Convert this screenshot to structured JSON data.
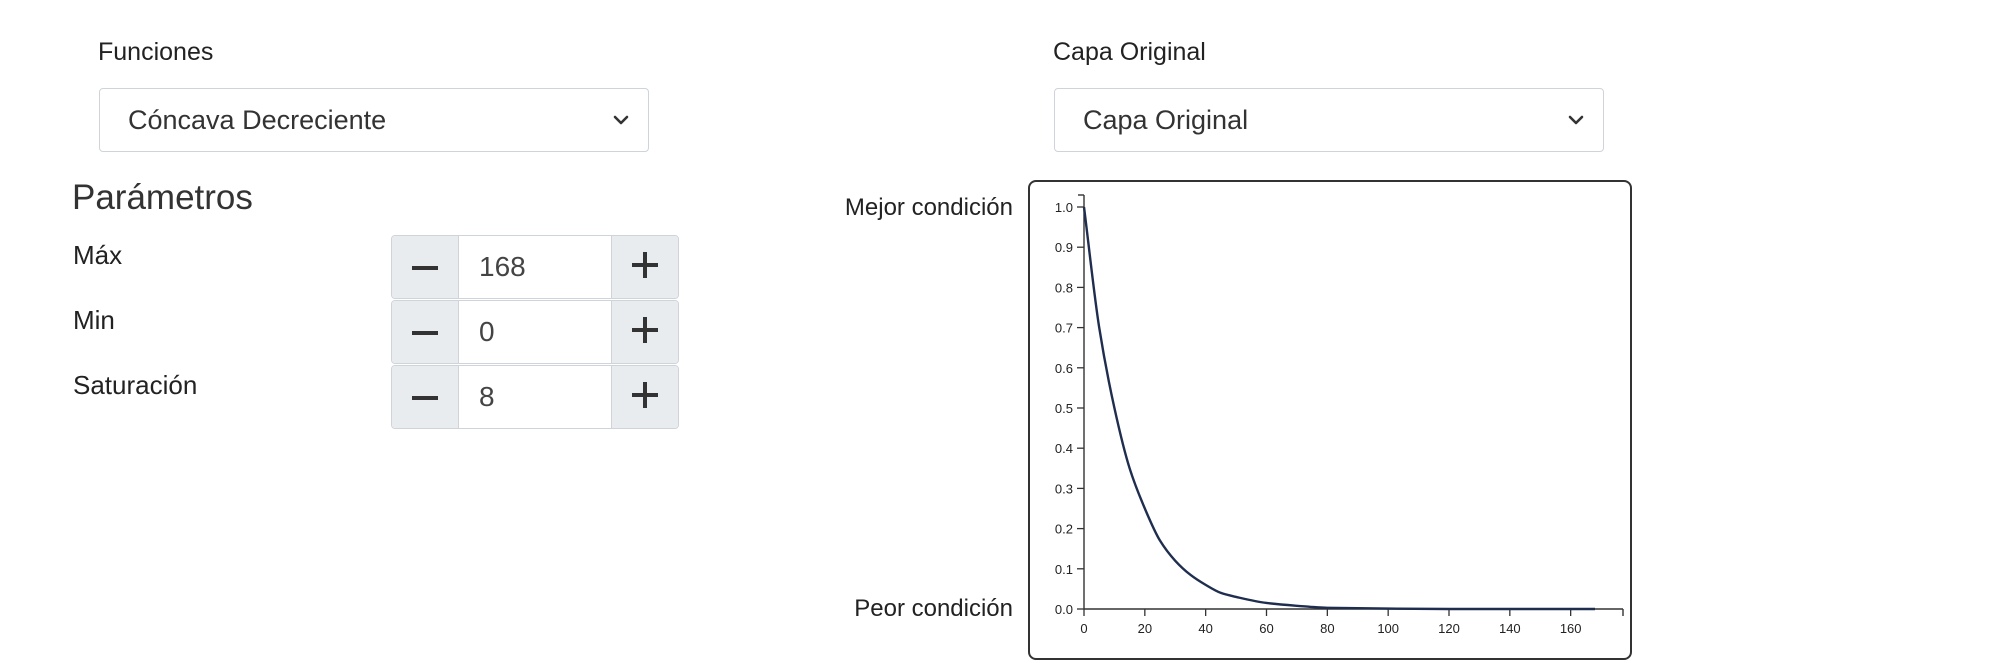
{
  "left": {
    "functions_label": "Funciones",
    "functions_select": "Cóncava Decreciente",
    "parameters_title": "Parámetros",
    "params": [
      {
        "label": "Máx",
        "value": "168"
      },
      {
        "label": "Min",
        "value": "0"
      },
      {
        "label": "Saturación",
        "value": "8"
      }
    ]
  },
  "right": {
    "layer_label": "Capa Original",
    "layer_select": "Capa Original",
    "best_label": "Mejor condición",
    "worst_label": "Peor condición"
  },
  "icons": {
    "minus": "minus-icon",
    "plus": "plus-icon",
    "chevron": "chevron-down-icon"
  },
  "colors": {
    "curve": "#1f2d4f",
    "axis": "#333333",
    "button_bg": "#e9ecef"
  },
  "chart_data": {
    "type": "line",
    "function": "concave decreasing (exponential decay)",
    "x": [
      0,
      5,
      10,
      15,
      20,
      25,
      30,
      35,
      40,
      45,
      50,
      60,
      70,
      80,
      100,
      120,
      140,
      168
    ],
    "y": [
      1.0,
      0.7,
      0.5,
      0.35,
      0.25,
      0.17,
      0.12,
      0.085,
      0.06,
      0.04,
      0.03,
      0.015,
      0.008,
      0.003,
      0.001,
      0.0,
      0.0,
      0.0
    ],
    "xlim": [
      0,
      168
    ],
    "ylim": [
      0,
      1.0
    ],
    "xticks": [
      "0",
      "20",
      "40",
      "60",
      "80",
      "100",
      "120",
      "140",
      "160"
    ],
    "yticks": [
      "0.0",
      "0.1",
      "0.2",
      "0.3",
      "0.4",
      "0.5",
      "0.6",
      "0.7",
      "0.8",
      "0.9",
      "1.0"
    ],
    "grid": false
  }
}
